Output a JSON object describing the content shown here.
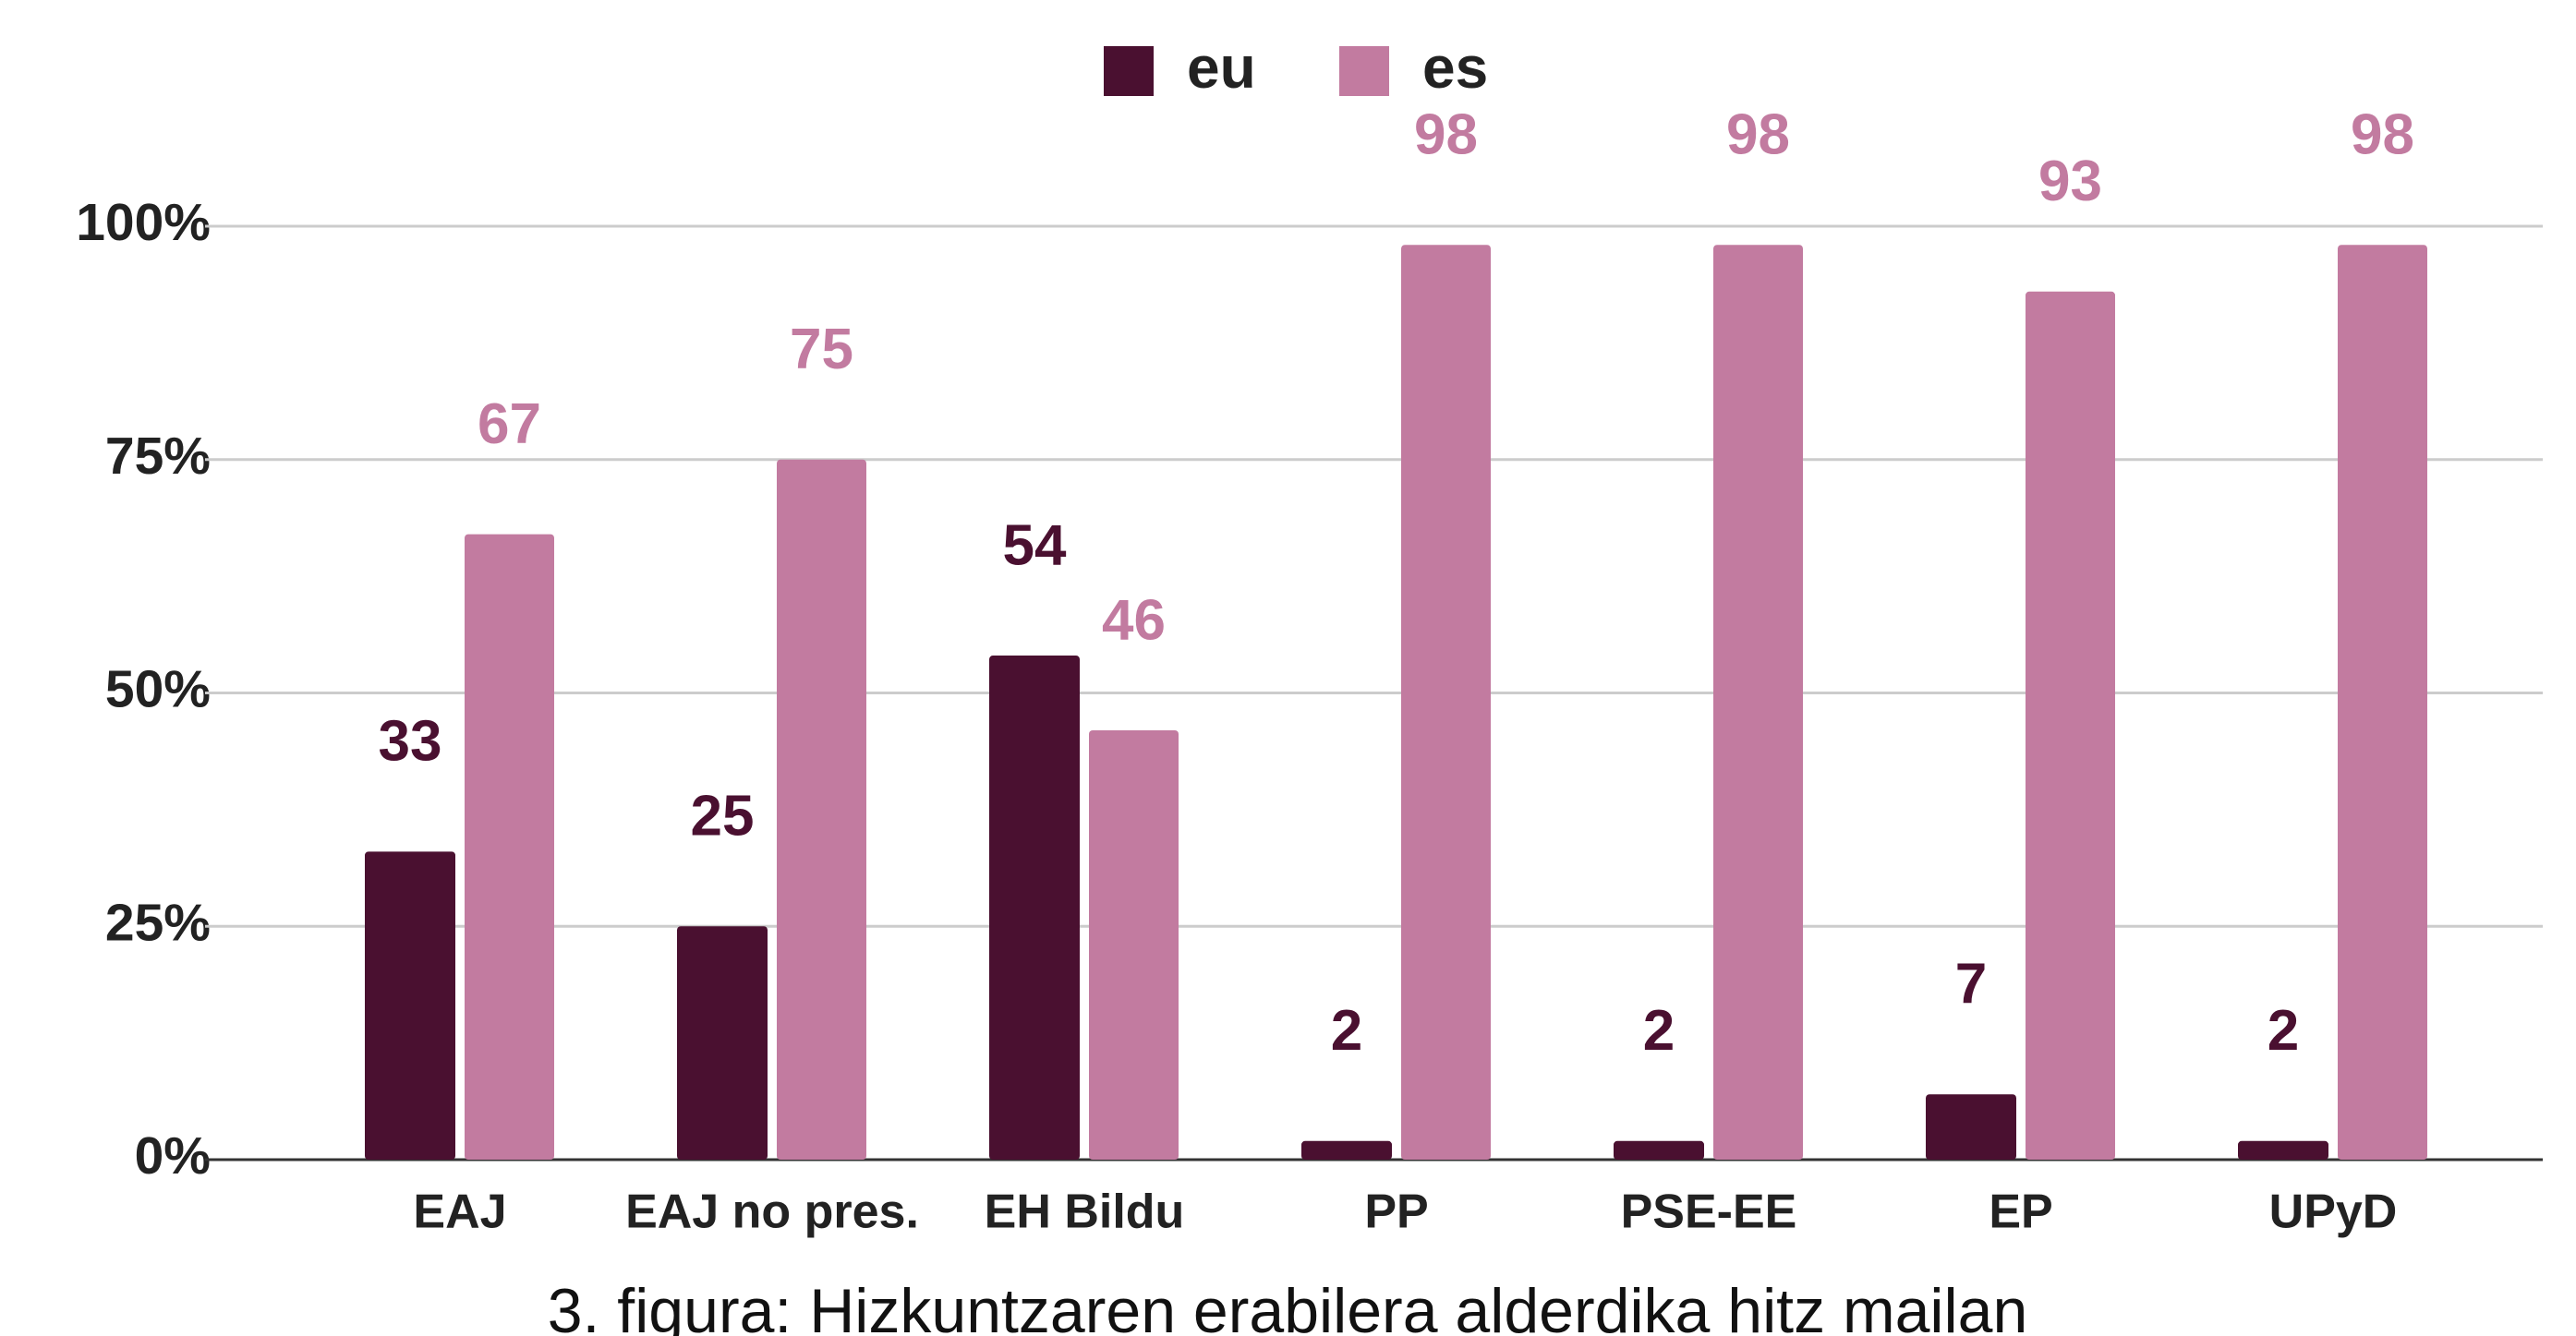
{
  "chart_data": {
    "type": "bar",
    "caption": "3. figura: Hizkuntzaren erabilera alderdika hitz mailan",
    "categories": [
      "EAJ",
      "EAJ no pres.",
      "EH Bildu",
      "PP",
      "PSE-EE",
      "EP",
      "UPyD"
    ],
    "series": [
      {
        "name": "eu",
        "color": "#4a1030",
        "values": [
          33,
          25,
          54,
          2,
          2,
          7,
          2
        ]
      },
      {
        "name": "es",
        "color": "#c27ba0",
        "values": [
          67,
          75,
          46,
          98,
          98,
          93,
          98
        ]
      }
    ],
    "ylim": [
      0,
      100
    ],
    "yticks": [
      {
        "value": 0,
        "label": "0%"
      },
      {
        "value": 25,
        "label": "25%"
      },
      {
        "value": 50,
        "label": "50%"
      },
      {
        "value": 75,
        "label": "75%"
      },
      {
        "value": 100,
        "label": "100%"
      }
    ],
    "grid": true,
    "legend": "top"
  }
}
